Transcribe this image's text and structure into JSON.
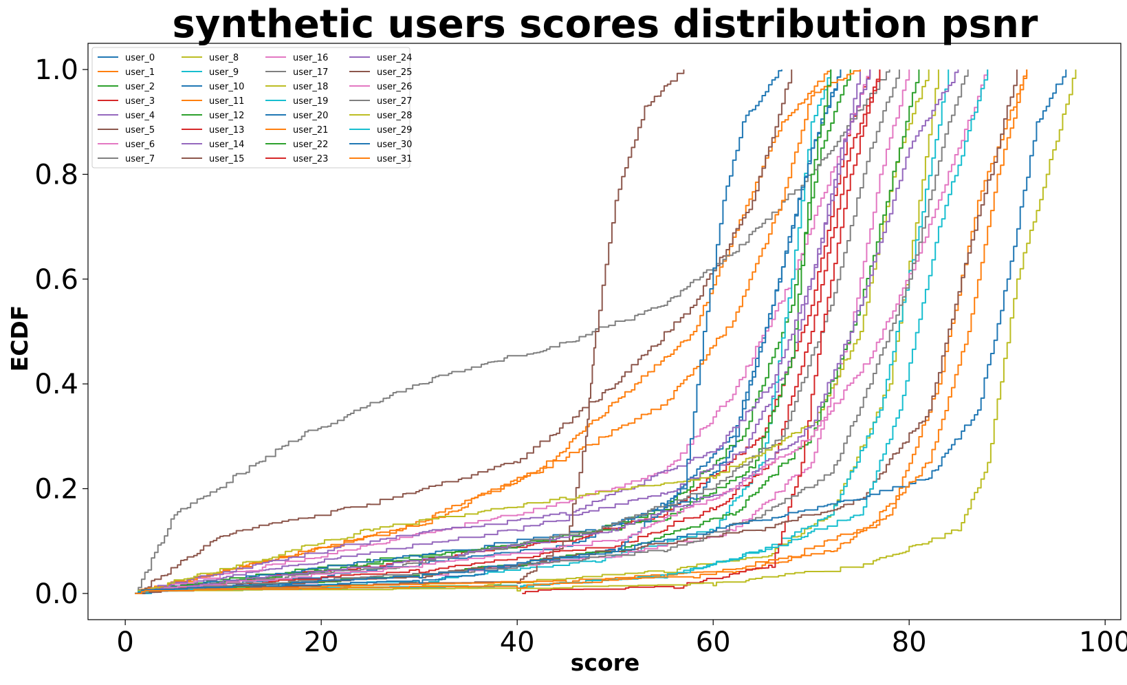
{
  "chart_data": {
    "type": "line",
    "title": "synthetic users scores distribution psnr",
    "xlabel": "score",
    "ylabel": "ECDF",
    "xlim": [
      -3.8,
      101.6
    ],
    "ylim": [
      -0.05,
      1.05
    ],
    "xticks": [
      "0",
      "20",
      "40",
      "60",
      "80",
      "100"
    ],
    "yticks": [
      "0.0",
      "0.2",
      "0.4",
      "0.6",
      "0.8",
      "1.0"
    ],
    "grid": false,
    "legend_position": "top-left",
    "colors": [
      "#1f77b4",
      "#ff7f0e",
      "#2ca02c",
      "#d62728",
      "#9467bd",
      "#8c564b",
      "#e377c2",
      "#7f7f7f",
      "#bcbd22",
      "#17becf"
    ],
    "series": [
      {
        "name": "user_0",
        "points": [
          [
            1,
            0
          ],
          [
            20,
            0.03
          ],
          [
            45,
            0.09
          ],
          [
            55,
            0.17
          ],
          [
            62,
            0.3
          ],
          [
            66,
            0.55
          ],
          [
            70,
            0.85
          ],
          [
            73,
            1.0
          ]
        ]
      },
      {
        "name": "user_1",
        "points": [
          [
            1,
            0
          ],
          [
            28,
            0.12
          ],
          [
            42,
            0.23
          ],
          [
            52,
            0.4
          ],
          [
            58,
            0.5
          ],
          [
            62,
            0.68
          ],
          [
            67,
            0.9
          ],
          [
            72,
            1.0
          ]
        ]
      },
      {
        "name": "user_2",
        "points": [
          [
            1,
            0
          ],
          [
            25,
            0.06
          ],
          [
            45,
            0.1
          ],
          [
            55,
            0.16
          ],
          [
            63,
            0.3
          ],
          [
            68,
            0.55
          ],
          [
            71,
            0.85
          ],
          [
            74,
            1.0
          ]
        ]
      },
      {
        "name": "user_3",
        "points": [
          [
            1,
            0
          ],
          [
            25,
            0.05
          ],
          [
            45,
            0.1
          ],
          [
            55,
            0.15
          ],
          [
            65,
            0.3
          ],
          [
            70,
            0.55
          ],
          [
            74,
            0.9
          ],
          [
            76,
            1.0
          ]
        ]
      },
      {
        "name": "user_4",
        "points": [
          [
            1,
            0
          ],
          [
            20,
            0.06
          ],
          [
            40,
            0.12
          ],
          [
            55,
            0.19
          ],
          [
            63,
            0.27
          ],
          [
            68,
            0.45
          ],
          [
            72,
            0.75
          ],
          [
            75,
            1.0
          ]
        ]
      },
      {
        "name": "user_5",
        "points": [
          [
            1,
            0
          ],
          [
            10,
            0.11
          ],
          [
            25,
            0.17
          ],
          [
            40,
            0.25
          ],
          [
            50,
            0.4
          ],
          [
            58,
            0.55
          ],
          [
            64,
            0.75
          ],
          [
            68,
            1.0
          ]
        ]
      },
      {
        "name": "user_6",
        "points": [
          [
            1,
            0
          ],
          [
            20,
            0.07
          ],
          [
            40,
            0.15
          ],
          [
            55,
            0.23
          ],
          [
            62,
            0.38
          ],
          [
            68,
            0.6
          ],
          [
            73,
            0.85
          ],
          [
            76,
            1.0
          ]
        ]
      },
      {
        "name": "user_7",
        "points": [
          [
            1,
            0
          ],
          [
            5,
            0.15
          ],
          [
            18,
            0.3
          ],
          [
            30,
            0.4
          ],
          [
            45,
            0.48
          ],
          [
            55,
            0.55
          ],
          [
            62,
            0.65
          ],
          [
            70,
            0.8
          ],
          [
            78,
            1.0
          ]
        ]
      },
      {
        "name": "user_8",
        "points": [
          [
            1,
            0
          ],
          [
            35,
            0.01
          ],
          [
            55,
            0.04
          ],
          [
            65,
            0.07
          ],
          [
            72,
            0.15
          ],
          [
            78,
            0.4
          ],
          [
            81,
            0.75
          ],
          [
            83,
            1.0
          ]
        ]
      },
      {
        "name": "user_9",
        "points": [
          [
            1,
            0
          ],
          [
            30,
            0.02
          ],
          [
            48,
            0.06
          ],
          [
            60,
            0.12
          ],
          [
            65,
            0.25
          ],
          [
            68,
            0.6
          ],
          [
            70,
            0.9
          ],
          [
            72,
            1.0
          ]
        ]
      },
      {
        "name": "user_10",
        "points": [
          [
            1,
            0
          ],
          [
            30,
            0.07
          ],
          [
            48,
            0.12
          ],
          [
            58,
            0.18
          ],
          [
            62,
            0.28
          ],
          [
            66,
            0.55
          ],
          [
            70,
            0.85
          ],
          [
            73,
            1.0
          ]
        ]
      },
      {
        "name": "user_11",
        "points": [
          [
            1,
            0
          ],
          [
            30,
            0.13
          ],
          [
            45,
            0.26
          ],
          [
            55,
            0.36
          ],
          [
            62,
            0.52
          ],
          [
            67,
            0.75
          ],
          [
            70,
            0.95
          ],
          [
            75,
            1.0
          ]
        ]
      },
      {
        "name": "user_12",
        "points": [
          [
            1,
            0
          ],
          [
            20,
            0.04
          ],
          [
            40,
            0.09
          ],
          [
            55,
            0.14
          ],
          [
            64,
            0.24
          ],
          [
            68,
            0.45
          ],
          [
            70,
            0.8
          ],
          [
            72,
            1.0
          ]
        ]
      },
      {
        "name": "user_13",
        "points": [
          [
            1,
            0
          ],
          [
            30,
            0.04
          ],
          [
            50,
            0.09
          ],
          [
            60,
            0.16
          ],
          [
            66,
            0.25
          ],
          [
            70,
            0.5
          ],
          [
            74,
            0.85
          ],
          [
            77,
            1.0
          ]
        ]
      },
      {
        "name": "user_14",
        "points": [
          [
            1,
            0
          ],
          [
            25,
            0.1
          ],
          [
            45,
            0.15
          ],
          [
            60,
            0.27
          ],
          [
            66,
            0.4
          ],
          [
            70,
            0.6
          ],
          [
            73,
            0.85
          ],
          [
            76,
            1.0
          ]
        ]
      },
      {
        "name": "user_15",
        "points": [
          [
            1,
            0
          ],
          [
            20,
            0.01
          ],
          [
            40,
            0.02
          ],
          [
            45,
            0.1
          ],
          [
            47,
            0.3
          ],
          [
            48,
            0.5
          ],
          [
            50,
            0.75
          ],
          [
            53,
            0.93
          ],
          [
            57,
            1.0
          ]
        ]
      },
      {
        "name": "user_16",
        "points": [
          [
            1,
            0
          ],
          [
            30,
            0.03
          ],
          [
            50,
            0.07
          ],
          [
            62,
            0.12
          ],
          [
            70,
            0.25
          ],
          [
            74,
            0.5
          ],
          [
            77,
            0.8
          ],
          [
            80,
            1.0
          ]
        ]
      },
      {
        "name": "user_17",
        "points": [
          [
            1,
            0
          ],
          [
            28,
            0.05
          ],
          [
            48,
            0.12
          ],
          [
            60,
            0.2
          ],
          [
            67,
            0.3
          ],
          [
            72,
            0.55
          ],
          [
            76,
            0.85
          ],
          [
            79,
            1.0
          ]
        ]
      },
      {
        "name": "user_18",
        "points": [
          [
            1,
            0
          ],
          [
            25,
            0.12
          ],
          [
            45,
            0.18
          ],
          [
            60,
            0.22
          ],
          [
            70,
            0.32
          ],
          [
            75,
            0.5
          ],
          [
            79,
            0.85
          ],
          [
            82,
            1.0
          ]
        ]
      },
      {
        "name": "user_19",
        "points": [
          [
            1,
            0
          ],
          [
            40,
            0.01
          ],
          [
            55,
            0.03
          ],
          [
            65,
            0.08
          ],
          [
            72,
            0.15
          ],
          [
            77,
            0.35
          ],
          [
            81,
            0.7
          ],
          [
            84,
            1.0
          ]
        ]
      },
      {
        "name": "user_20",
        "points": [
          [
            1,
            0
          ],
          [
            30,
            0.02
          ],
          [
            50,
            0.08
          ],
          [
            57,
            0.2
          ],
          [
            59,
            0.5
          ],
          [
            61,
            0.75
          ],
          [
            63,
            0.9
          ],
          [
            67,
            1.0
          ]
        ]
      },
      {
        "name": "user_21",
        "points": [
          [
            1,
            0
          ],
          [
            45,
            0.02
          ],
          [
            62,
            0.04
          ],
          [
            72,
            0.08
          ],
          [
            78,
            0.15
          ],
          [
            83,
            0.4
          ],
          [
            87,
            0.75
          ],
          [
            92,
            1.0
          ]
        ]
      },
      {
        "name": "user_22",
        "points": [
          [
            1,
            0
          ],
          [
            30,
            0.03
          ],
          [
            50,
            0.08
          ],
          [
            62,
            0.15
          ],
          [
            70,
            0.3
          ],
          [
            75,
            0.55
          ],
          [
            79,
            0.85
          ],
          [
            81,
            1.0
          ]
        ]
      },
      {
        "name": "user_23",
        "points": [
          [
            40.5,
            0
          ],
          [
            56,
            0.01
          ],
          [
            66,
            0.05
          ],
          [
            69,
            0.25
          ],
          [
            71,
            0.5
          ],
          [
            74,
            0.8
          ],
          [
            77,
            1.0
          ]
        ]
      },
      {
        "name": "user_24",
        "points": [
          [
            1,
            0
          ],
          [
            30,
            0.06
          ],
          [
            50,
            0.12
          ],
          [
            62,
            0.2
          ],
          [
            70,
            0.32
          ],
          [
            75,
            0.55
          ],
          [
            80,
            0.85
          ],
          [
            85,
            1.0
          ]
        ]
      },
      {
        "name": "user_25",
        "points": [
          [
            1,
            0
          ],
          [
            30,
            0.03
          ],
          [
            50,
            0.08
          ],
          [
            65,
            0.12
          ],
          [
            75,
            0.18
          ],
          [
            82,
            0.35
          ],
          [
            86,
            0.65
          ],
          [
            89,
            0.85
          ],
          [
            91,
            1.0
          ]
        ]
      },
      {
        "name": "user_26",
        "points": [
          [
            1,
            0
          ],
          [
            30,
            0.05
          ],
          [
            50,
            0.1
          ],
          [
            62,
            0.2
          ],
          [
            70,
            0.3
          ],
          [
            76,
            0.45
          ],
          [
            81,
            0.65
          ],
          [
            85,
            0.85
          ],
          [
            88,
            1.0
          ]
        ]
      },
      {
        "name": "user_27",
        "points": [
          [
            1,
            0
          ],
          [
            35,
            0.04
          ],
          [
            55,
            0.08
          ],
          [
            65,
            0.15
          ],
          [
            72,
            0.23
          ],
          [
            76,
            0.4
          ],
          [
            80,
            0.6
          ],
          [
            84,
            0.9
          ],
          [
            86,
            1.0
          ]
        ]
      },
      {
        "name": "user_28",
        "points": [
          [
            1,
            0
          ],
          [
            40,
            0.005
          ],
          [
            60,
            0.015
          ],
          [
            75,
            0.05
          ],
          [
            85,
            0.12
          ],
          [
            88,
            0.25
          ],
          [
            91,
            0.6
          ],
          [
            94,
            0.8
          ],
          [
            97,
            1.0
          ]
        ]
      },
      {
        "name": "user_29",
        "points": [
          [
            1,
            0
          ],
          [
            40,
            0.01
          ],
          [
            55,
            0.03
          ],
          [
            65,
            0.08
          ],
          [
            75,
            0.15
          ],
          [
            79,
            0.35
          ],
          [
            83,
            0.7
          ],
          [
            88,
            1.0
          ]
        ]
      },
      {
        "name": "user_30",
        "points": [
          [
            1,
            0
          ],
          [
            30,
            0.03
          ],
          [
            50,
            0.08
          ],
          [
            65,
            0.14
          ],
          [
            75,
            0.18
          ],
          [
            82,
            0.22
          ],
          [
            87,
            0.35
          ],
          [
            90,
            0.6
          ],
          [
            93,
            0.9
          ],
          [
            96,
            1.0
          ]
        ]
      },
      {
        "name": "user_31",
        "points": [
          [
            1,
            0
          ],
          [
            40,
            0.01
          ],
          [
            58,
            0.03
          ],
          [
            68,
            0.07
          ],
          [
            76,
            0.13
          ],
          [
            82,
            0.25
          ],
          [
            86,
            0.5
          ],
          [
            89,
            0.8
          ],
          [
            92,
            1.0
          ]
        ]
      }
    ]
  }
}
